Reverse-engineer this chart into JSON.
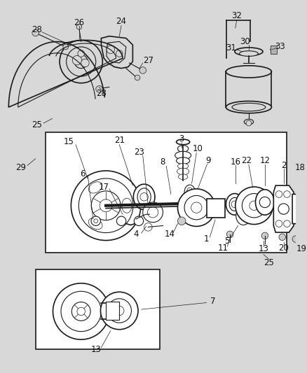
{
  "bg_color": "#d8d8d8",
  "fig_width": 4.38,
  "fig_height": 5.33,
  "dpi": 100,
  "line_color": "#1a1a1a",
  "label_color": "#111111",
  "label_fs": 6.5,
  "white": "#ffffff",
  "light_gray": "#cccccc",
  "mid_gray": "#999999"
}
